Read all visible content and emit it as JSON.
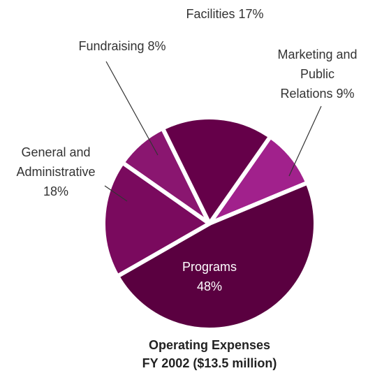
{
  "chart_data": {
    "type": "pie",
    "title": "Operating Expenses",
    "subtitle": "FY 2002 ($13.5 million)",
    "categories": [
      "Marketing and Public Relations",
      "Programs",
      "General and Administrative",
      "Fundraising",
      "Facilities"
    ],
    "values": [
      9,
      48,
      18,
      8,
      17
    ],
    "value_labels": [
      "9%",
      "48%",
      "18%",
      "8%",
      "17%"
    ],
    "colors": [
      "#a1218c",
      "#5a0040",
      "#7a0a5e",
      "#8a1670",
      "#650049"
    ]
  }
}
